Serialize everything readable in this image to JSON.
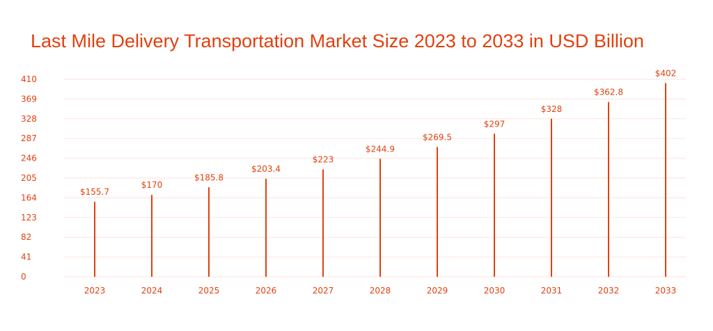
{
  "chart_data": {
    "type": "bar",
    "title": "Last Mile Delivery Transportation Market Size 2023 to 2033 in USD Billion",
    "xlabel": "",
    "ylabel": "",
    "categories": [
      "2023",
      "2024",
      "2025",
      "2026",
      "2027",
      "2028",
      "2029",
      "2030",
      "2031",
      "2032",
      "2033"
    ],
    "values": [
      155.7,
      170,
      185.8,
      203.4,
      223,
      244.9,
      269.5,
      297,
      328,
      362.8,
      402
    ],
    "data_labels": [
      "$155.7",
      "$170",
      "$185.8",
      "$203.4",
      "$223",
      "$244.9",
      "$269.5",
      "$297",
      "$328",
      "$362.8",
      "$402"
    ],
    "ylim": [
      0,
      410
    ],
    "yticks": [
      "0",
      "41",
      "82",
      "123",
      "164",
      "205",
      "246",
      "287",
      "328",
      "369",
      "410"
    ],
    "grid": true,
    "bar_color": "#e2400f",
    "grid_color": "#fbe3dc"
  }
}
